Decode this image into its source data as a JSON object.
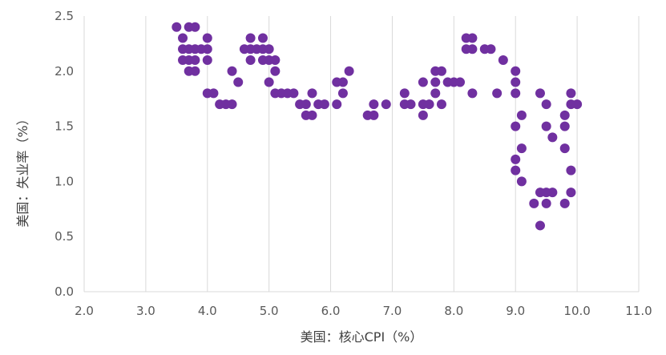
{
  "chart_data": {
    "type": "scatter",
    "xlabel": "美国：核心CPI（%）",
    "ylabel": "美国：失业率（%）",
    "xlim": [
      2.0,
      11.0
    ],
    "ylim": [
      0.0,
      2.5
    ],
    "x_ticks": [
      2.0,
      3.0,
      4.0,
      5.0,
      6.0,
      7.0,
      8.0,
      9.0,
      10.0,
      11.0
    ],
    "y_ticks": [
      0.0,
      0.5,
      1.0,
      1.5,
      2.0,
      2.5
    ],
    "x_tick_labels": [
      "2.0",
      "3.0",
      "4.0",
      "5.0",
      "6.0",
      "7.0",
      "8.0",
      "9.0",
      "10.0",
      "11.0"
    ],
    "y_tick_labels": [
      "0.0",
      "0.5",
      "1.0",
      "1.5",
      "2.0",
      "2.5"
    ],
    "grid": "vertical",
    "color": "#7030a0",
    "points": [
      [
        3.5,
        2.4
      ],
      [
        3.7,
        2.4
      ],
      [
        3.8,
        2.4
      ],
      [
        3.6,
        2.3
      ],
      [
        4.0,
        2.3
      ],
      [
        4.7,
        2.3
      ],
      [
        4.9,
        2.3
      ],
      [
        8.2,
        2.3
      ],
      [
        8.3,
        2.3
      ],
      [
        3.6,
        2.2
      ],
      [
        3.7,
        2.2
      ],
      [
        3.8,
        2.2
      ],
      [
        3.9,
        2.2
      ],
      [
        4.0,
        2.2
      ],
      [
        4.6,
        2.2
      ],
      [
        4.7,
        2.2
      ],
      [
        4.8,
        2.2
      ],
      [
        4.9,
        2.2
      ],
      [
        5.0,
        2.2
      ],
      [
        8.2,
        2.2
      ],
      [
        8.3,
        2.2
      ],
      [
        8.5,
        2.2
      ],
      [
        8.6,
        2.2
      ],
      [
        3.6,
        2.1
      ],
      [
        3.7,
        2.1
      ],
      [
        3.8,
        2.1
      ],
      [
        4.0,
        2.1
      ],
      [
        4.7,
        2.1
      ],
      [
        4.9,
        2.1
      ],
      [
        5.0,
        2.1
      ],
      [
        5.1,
        2.1
      ],
      [
        8.8,
        2.1
      ],
      [
        3.7,
        2.0
      ],
      [
        3.8,
        2.0
      ],
      [
        4.4,
        2.0
      ],
      [
        5.1,
        2.0
      ],
      [
        6.3,
        2.0
      ],
      [
        7.7,
        2.0
      ],
      [
        7.8,
        2.0
      ],
      [
        9.0,
        2.0
      ],
      [
        4.5,
        1.9
      ],
      [
        5.0,
        1.9
      ],
      [
        6.1,
        1.9
      ],
      [
        6.2,
        1.9
      ],
      [
        7.5,
        1.9
      ],
      [
        7.7,
        1.9
      ],
      [
        7.9,
        1.9
      ],
      [
        8.0,
        1.9
      ],
      [
        8.1,
        1.9
      ],
      [
        9.0,
        1.9
      ],
      [
        4.0,
        1.8
      ],
      [
        4.1,
        1.8
      ],
      [
        5.1,
        1.8
      ],
      [
        5.2,
        1.8
      ],
      [
        5.3,
        1.8
      ],
      [
        5.4,
        1.8
      ],
      [
        5.7,
        1.8
      ],
      [
        6.2,
        1.8
      ],
      [
        7.2,
        1.8
      ],
      [
        7.7,
        1.8
      ],
      [
        8.3,
        1.8
      ],
      [
        8.7,
        1.8
      ],
      [
        9.0,
        1.8
      ],
      [
        9.4,
        1.8
      ],
      [
        9.9,
        1.8
      ],
      [
        4.2,
        1.7
      ],
      [
        4.3,
        1.7
      ],
      [
        4.4,
        1.7
      ],
      [
        5.5,
        1.7
      ],
      [
        5.6,
        1.7
      ],
      [
        5.8,
        1.7
      ],
      [
        5.9,
        1.7
      ],
      [
        6.1,
        1.7
      ],
      [
        6.7,
        1.7
      ],
      [
        6.9,
        1.7
      ],
      [
        7.2,
        1.7
      ],
      [
        7.3,
        1.7
      ],
      [
        7.5,
        1.7
      ],
      [
        7.6,
        1.7
      ],
      [
        7.8,
        1.7
      ],
      [
        9.5,
        1.7
      ],
      [
        9.9,
        1.7
      ],
      [
        10.0,
        1.7
      ],
      [
        5.6,
        1.6
      ],
      [
        5.7,
        1.6
      ],
      [
        6.6,
        1.6
      ],
      [
        6.7,
        1.6
      ],
      [
        7.5,
        1.6
      ],
      [
        9.1,
        1.6
      ],
      [
        9.8,
        1.6
      ],
      [
        9.0,
        1.5
      ],
      [
        9.5,
        1.5
      ],
      [
        9.8,
        1.5
      ],
      [
        9.6,
        1.4
      ],
      [
        9.1,
        1.3
      ],
      [
        9.8,
        1.3
      ],
      [
        9.0,
        1.2
      ],
      [
        9.0,
        1.1
      ],
      [
        9.9,
        1.1
      ],
      [
        9.1,
        1.0
      ],
      [
        9.4,
        0.9
      ],
      [
        9.5,
        0.9
      ],
      [
        9.6,
        0.9
      ],
      [
        9.9,
        0.9
      ],
      [
        9.3,
        0.8
      ],
      [
        9.5,
        0.8
      ],
      [
        9.8,
        0.8
      ],
      [
        9.4,
        0.6
      ]
    ]
  }
}
